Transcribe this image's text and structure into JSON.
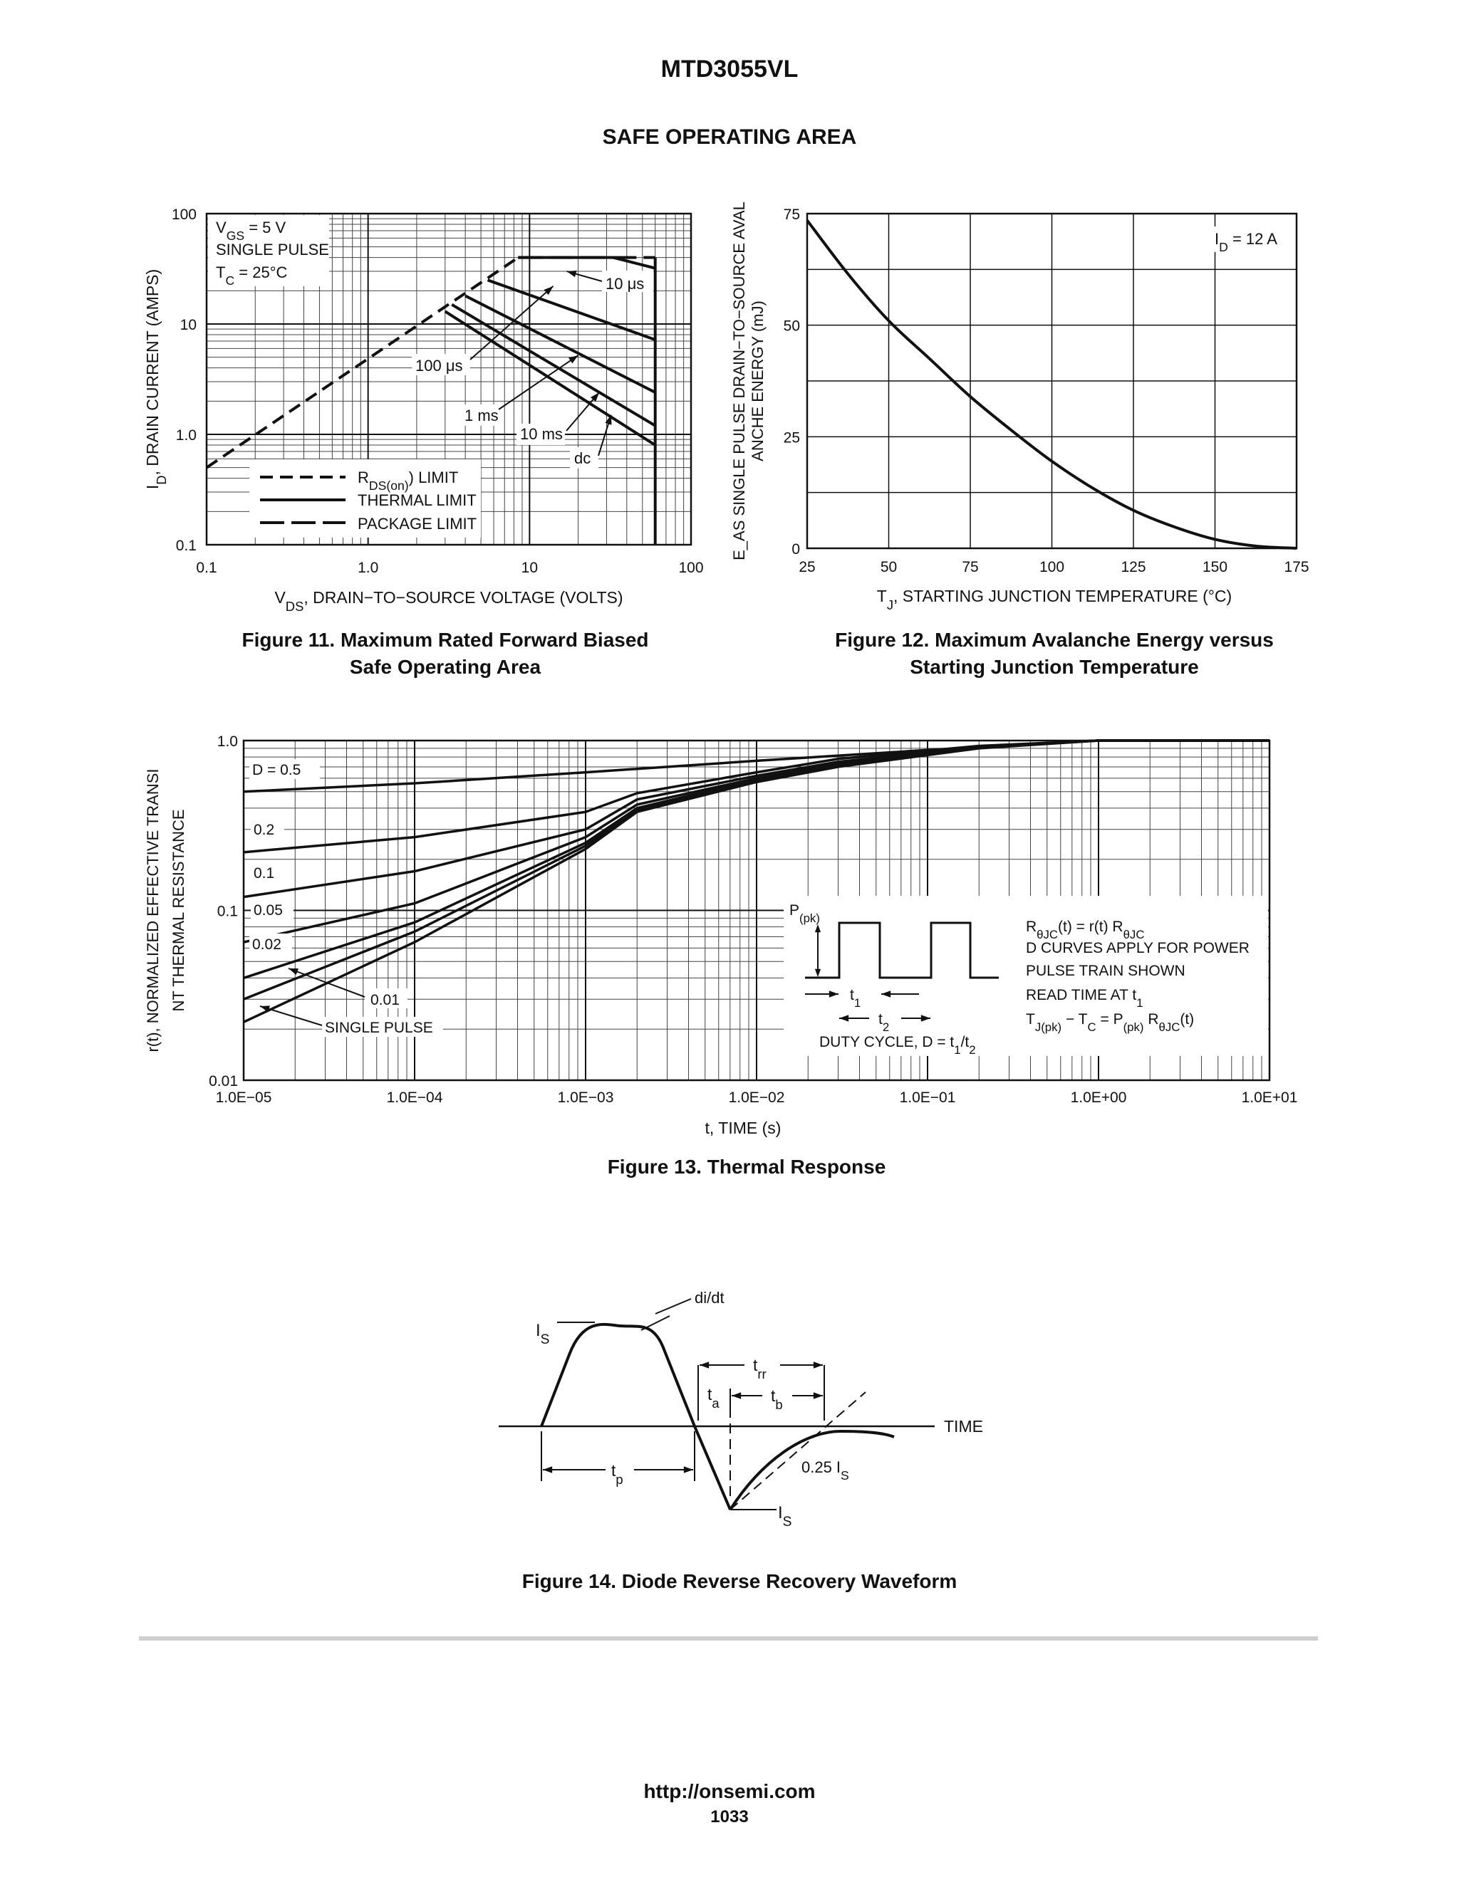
{
  "document": {
    "part_number": "MTD3055VL",
    "section_title": "SAFE OPERATING AREA",
    "footer_url": "http://onsemi.com",
    "page_number": "1033"
  },
  "figures": {
    "fig11": {
      "caption_line1": "Figure 11. Maximum Rated Forward Biased",
      "caption_line2": "Safe Operating Area",
      "conditions": [
        "V_GS = 5 V",
        "SINGLE PULSE",
        "T_C = 25°C"
      ],
      "legend": [
        "R_DS(on) LIMIT",
        "THERMAL LIMIT",
        "PACKAGE LIMIT"
      ],
      "curve_labels": [
        "10 μs",
        "100 μs",
        "1 ms",
        "10 ms",
        "dc"
      ]
    },
    "fig12": {
      "caption_line1": "Figure 12. Maximum Avalanche Energy versus",
      "caption_line2": "Starting Junction Temperature",
      "annotation": "I_D = 12 A"
    },
    "fig13": {
      "caption": "Figure 13. Thermal Response",
      "curve_labels": [
        "D = 0.5",
        "0.2",
        "0.1",
        "0.05",
        "0.02",
        "0.01",
        "SINGLE PULSE"
      ],
      "notes": [
        "RθJC(t) = r(t) RθJC",
        "D CURVES APPLY FOR POWER",
        "PULSE TRAIN SHOWN",
        "READ TIME AT t1",
        "TJ(pk) − TC = P(pk) RθJC(t)"
      ],
      "inset_labels": [
        "P(pk)",
        "t1",
        "t2",
        "DUTY CYCLE, D = t1/t2"
      ]
    },
    "fig14": {
      "caption": "Figure 14. Diode Reverse Recovery Waveform",
      "labels": [
        "di/dt",
        "IS",
        "trr",
        "ta",
        "tb",
        "TIME",
        "tp",
        "0.25 IS",
        "IS"
      ]
    }
  },
  "chart_data": [
    {
      "type": "line",
      "id": "fig11",
      "xlabel": "V_DS, DRAIN−TO−SOURCE VOLTAGE (VOLTS)",
      "ylabel": "I_D, DRAIN CURRENT (AMPS)",
      "x_scale": "log",
      "y_scale": "log",
      "xlim": [
        0.1,
        100
      ],
      "ylim": [
        0.1,
        100
      ],
      "x_ticks": [
        "0.1",
        "1.0",
        "10",
        "100"
      ],
      "y_ticks": [
        "0.1",
        "1.0",
        "10",
        "100"
      ],
      "grid": true,
      "series": [
        {
          "name": "R_DS(on) LIMIT",
          "style": "dashed",
          "x": [
            0.1,
            8.5
          ],
          "y": [
            0.5,
            40
          ]
        },
        {
          "name": "PACKAGE LIMIT",
          "style": "long-dash",
          "x": [
            8.5,
            60
          ],
          "y": [
            40,
            40
          ]
        },
        {
          "name": "10 μs",
          "style": "solid",
          "x": [
            8.5,
            33,
            60
          ],
          "y": [
            40,
            40,
            32
          ]
        },
        {
          "name": "100 μs",
          "style": "solid",
          "x": [
            5.5,
            60
          ],
          "y": [
            25,
            7.2
          ]
        },
        {
          "name": "1 ms",
          "style": "solid",
          "x": [
            4.0,
            60
          ],
          "y": [
            18,
            2.4
          ]
        },
        {
          "name": "10 ms",
          "style": "solid",
          "x": [
            3.3,
            60
          ],
          "y": [
            15,
            1.2
          ]
        },
        {
          "name": "dc",
          "style": "solid",
          "x": [
            3.0,
            60
          ],
          "y": [
            13,
            0.8
          ]
        },
        {
          "name": "THERMAL LIMIT",
          "style": "solid",
          "x": [
            60,
            60
          ],
          "y": [
            40,
            0.1
          ]
        }
      ]
    },
    {
      "type": "line",
      "id": "fig12",
      "xlabel": "T_J, STARTING JUNCTION TEMPERATURE (°C)",
      "ylabel": "E_AS, SINGLE PULSE DRAIN−TO−SOURCE AVALANCHE ENERGY (mJ)",
      "xlim": [
        25,
        175
      ],
      "ylim": [
        0,
        75
      ],
      "x_ticks": [
        25,
        50,
        75,
        100,
        125,
        150,
        175
      ],
      "y_ticks": [
        0,
        25,
        50,
        75
      ],
      "grid": true,
      "series": [
        {
          "name": "I_D = 12 A",
          "x": [
            25,
            37.5,
            50,
            62.5,
            75,
            87.5,
            100,
            112.5,
            125,
            137.5,
            150,
            162.5,
            175
          ],
          "y": [
            73.5,
            61.5,
            51,
            42.5,
            34,
            26.5,
            19.5,
            13.5,
            8.5,
            4.8,
            2.0,
            0.5,
            0
          ]
        }
      ]
    },
    {
      "type": "line",
      "id": "fig13",
      "xlabel": "t, TIME (s)",
      "ylabel": "r(t), NORMALIZED EFFECTIVE TRANSIENT THERMAL RESISTANCE",
      "x_scale": "log",
      "y_scale": "log",
      "xlim": [
        1e-05,
        10
      ],
      "ylim": [
        0.01,
        1.0
      ],
      "x_ticks": [
        "1.0E−05",
        "1.0E−04",
        "1.0E−03",
        "1.0E−02",
        "1.0E−01",
        "1.0E+00",
        "1.0E+01"
      ],
      "y_ticks": [
        "0.01",
        "0.1",
        "1.0"
      ],
      "grid": true,
      "series": [
        {
          "name": "D = 0.5",
          "x": [
            1e-05,
            0.0001,
            0.001,
            0.01,
            0.1,
            1,
            10
          ],
          "y": [
            0.5,
            0.56,
            0.65,
            0.76,
            0.88,
            1.0,
            1.0
          ]
        },
        {
          "name": "0.2",
          "x": [
            1e-05,
            0.0001,
            0.001,
            0.002,
            0.01,
            0.03,
            0.2,
            1,
            10
          ],
          "y": [
            0.22,
            0.27,
            0.38,
            0.49,
            0.65,
            0.78,
            0.93,
            1.0,
            1.0
          ]
        },
        {
          "name": "0.1",
          "x": [
            1e-05,
            0.0001,
            0.001,
            0.002,
            0.01,
            0.03,
            0.2,
            1,
            10
          ],
          "y": [
            0.12,
            0.17,
            0.3,
            0.45,
            0.62,
            0.75,
            0.92,
            1.0,
            1.0
          ]
        },
        {
          "name": "0.05",
          "x": [
            1e-05,
            0.0001,
            0.001,
            0.002,
            0.01,
            0.03,
            0.2,
            1,
            10
          ],
          "y": [
            0.065,
            0.11,
            0.27,
            0.42,
            0.6,
            0.73,
            0.92,
            1.0,
            1.0
          ]
        },
        {
          "name": "0.02",
          "x": [
            1e-05,
            0.0001,
            0.001,
            0.002,
            0.01,
            0.03,
            0.2,
            1,
            10
          ],
          "y": [
            0.04,
            0.085,
            0.25,
            0.4,
            0.59,
            0.72,
            0.91,
            1.0,
            1.0
          ]
        },
        {
          "name": "0.01",
          "x": [
            1e-05,
            0.0001,
            0.001,
            0.002,
            0.01,
            0.03,
            0.2,
            1,
            10
          ],
          "y": [
            0.03,
            0.075,
            0.24,
            0.39,
            0.58,
            0.71,
            0.91,
            1.0,
            1.0
          ]
        },
        {
          "name": "SINGLE PULSE",
          "x": [
            1e-05,
            0.0001,
            0.001,
            0.002,
            0.01,
            0.03,
            0.2,
            1,
            10
          ],
          "y": [
            0.022,
            0.065,
            0.23,
            0.38,
            0.57,
            0.7,
            0.9,
            1.0,
            1.0
          ]
        }
      ]
    }
  ]
}
